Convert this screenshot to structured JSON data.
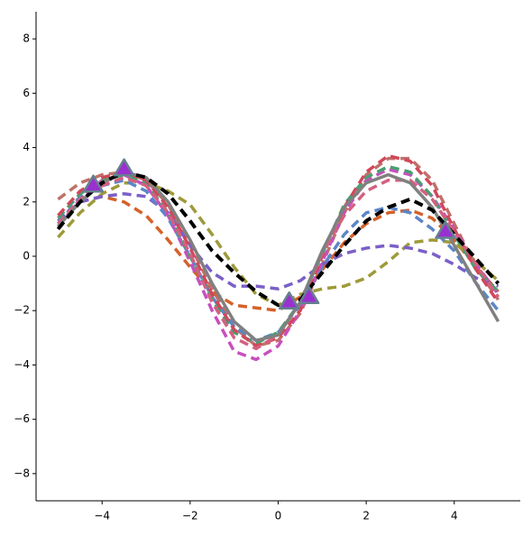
{
  "chart_data": {
    "type": "line",
    "x": [
      -5,
      -4.5,
      -4,
      -3.5,
      -3,
      -2.5,
      -2,
      -1.5,
      -1,
      -0.5,
      0,
      0.5,
      1,
      1.5,
      2,
      2.5,
      3,
      3.5,
      4,
      4.5,
      5
    ],
    "series": [
      {
        "color": "#c0706a",
        "style": "dashed",
        "values": [
          2.1,
          2.7,
          3.0,
          3.1,
          2.8,
          1.9,
          0.4,
          -1.2,
          -2.6,
          -3.3,
          -3.1,
          -2.1,
          -0.3,
          1.6,
          3.0,
          3.6,
          3.6,
          2.8,
          1.2,
          -0.4,
          -1.6
        ]
      },
      {
        "color": "#d4622a",
        "style": "dashed",
        "values": [
          1.3,
          2.0,
          2.2,
          2.0,
          1.5,
          0.6,
          -0.4,
          -1.3,
          -1.8,
          -1.9,
          -2.0,
          -1.5,
          -0.5,
          0.5,
          1.2,
          1.6,
          1.7,
          1.4,
          0.6,
          -0.4,
          -1.3
        ]
      },
      {
        "color": "#9e9a3a",
        "style": "dashed",
        "values": [
          0.7,
          1.6,
          2.3,
          2.7,
          2.7,
          2.4,
          1.9,
          0.8,
          -0.4,
          -1.4,
          -1.8,
          -1.4,
          -1.2,
          -1.1,
          -0.8,
          -0.2,
          0.5,
          0.6,
          0.5,
          -0.2,
          -0.9
        ]
      },
      {
        "color": "#7b5fc7",
        "style": "dashed",
        "values": [
          1.3,
          2.0,
          2.2,
          2.3,
          2.2,
          1.6,
          0.4,
          -0.6,
          -1.1,
          -1.1,
          -1.2,
          -0.9,
          -0.3,
          0.1,
          0.3,
          0.4,
          0.3,
          0.1,
          -0.3,
          -0.8,
          -1.1
        ]
      },
      {
        "color": "#5b86c7",
        "style": "dashed",
        "values": [
          1.2,
          2.2,
          2.6,
          2.8,
          2.4,
          1.4,
          0.0,
          -1.5,
          -2.6,
          -3.1,
          -2.8,
          -1.8,
          -0.4,
          0.8,
          1.6,
          1.8,
          1.6,
          1.0,
          0.2,
          -1.0,
          -2.0
        ]
      },
      {
        "color": "#c84fbf",
        "style": "dashed",
        "values": [
          1.1,
          2.1,
          2.8,
          3.0,
          2.6,
          1.5,
          -0.2,
          -2.0,
          -3.5,
          -3.8,
          -3.3,
          -2.0,
          -0.2,
          1.6,
          2.8,
          3.2,
          3.0,
          2.2,
          1.0,
          -0.3,
          -1.4
        ]
      },
      {
        "color": "#4a9e73",
        "style": "dashed",
        "values": [
          1.4,
          2.3,
          2.8,
          3.0,
          2.7,
          1.6,
          0.0,
          -1.6,
          -2.8,
          -3.2,
          -2.8,
          -1.7,
          0.1,
          1.9,
          2.9,
          3.3,
          3.1,
          2.2,
          0.8,
          -0.5,
          -1.3
        ]
      },
      {
        "color": "#d0485a",
        "style": "dashed",
        "values": [
          1.5,
          2.4,
          2.9,
          3.1,
          2.8,
          1.8,
          0.3,
          -1.4,
          -2.7,
          -3.3,
          -3.0,
          -2.0,
          0.0,
          1.8,
          3.1,
          3.7,
          3.5,
          2.6,
          1.0,
          -0.5,
          -1.7
        ]
      },
      {
        "color": "#d46080",
        "style": "dashed",
        "values": [
          1.2,
          2.1,
          2.6,
          2.9,
          2.6,
          1.6,
          0.1,
          -1.7,
          -3.0,
          -3.4,
          -2.9,
          -1.7,
          0.1,
          1.5,
          2.4,
          2.8,
          2.8,
          2.1,
          0.9,
          -0.3,
          -1.5
        ]
      },
      {
        "color": "#808080",
        "style": "solid",
        "values": [
          1.1,
          2.0,
          2.7,
          3.1,
          2.9,
          2.0,
          0.6,
          -1.0,
          -2.4,
          -3.1,
          -2.9,
          -1.7,
          0.2,
          1.8,
          2.7,
          3.0,
          2.7,
          1.8,
          0.4,
          -1.0,
          -2.4
        ]
      },
      {
        "color": "#000000",
        "style": "dashed",
        "values": [
          1.0,
          2.0,
          2.7,
          3.1,
          2.9,
          2.3,
          1.3,
          0.2,
          -0.6,
          -1.3,
          -1.8,
          -1.6,
          -0.6,
          0.4,
          1.3,
          1.8,
          2.1,
          1.7,
          0.8,
          -0.1,
          -1.0
        ]
      }
    ],
    "markers": {
      "x": [
        -4.2,
        -3.5,
        0.25,
        0.7,
        3.8
      ],
      "values": [
        2.6,
        3.2,
        -1.7,
        -1.5,
        0.9
      ],
      "color": "#9b30d0",
      "edgecolor": "#66808f"
    },
    "xlim": [
      -5.5,
      5.5
    ],
    "ylim": [
      -9,
      9
    ],
    "xticks": [
      {
        "value": -4,
        "label": "−4"
      },
      {
        "value": -2,
        "label": "−2"
      },
      0,
      2,
      4
    ],
    "yticks": [
      {
        "value": -8,
        "label": "−8"
      },
      {
        "value": -6,
        "label": "−6"
      },
      {
        "value": -4,
        "label": "−4"
      },
      {
        "value": -2,
        "label": "−2"
      },
      0,
      2,
      4,
      6,
      8
    ],
    "grid": false
  }
}
